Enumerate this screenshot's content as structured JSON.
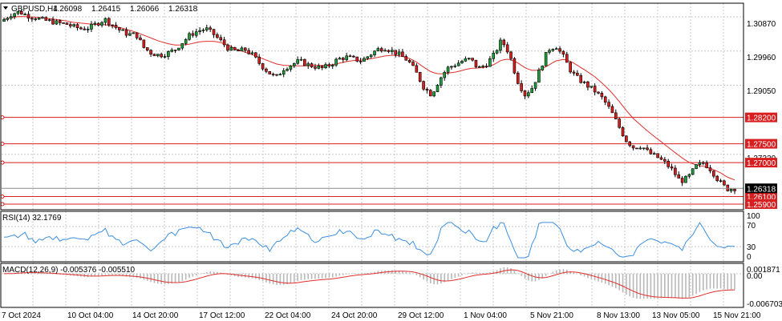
{
  "header": {
    "symbol": "GBPUSD,H4",
    "open": "1.26098",
    "high": "1.26415",
    "low": "1.26066",
    "close": "1.26318"
  },
  "colors": {
    "up": "#1e9e3a",
    "down": "#d81e1e",
    "ma": "#e0302c",
    "level": "#d81e1e",
    "rsi": "#3d8fe0",
    "macd_hist": "#b8b8b8",
    "macd_signal": "#e0302c",
    "grid": "#c8c8c8",
    "current_price_bg": "#000000"
  },
  "price_axis": {
    "ticks": [
      "1.30870",
      "1.29960",
      "1.29050",
      "1.27220"
    ]
  },
  "levels": [
    {
      "label": "1.28200",
      "value": 1.282
    },
    {
      "label": "1.27500",
      "value": 1.275
    },
    {
      "label": "1.27000",
      "value": 1.27
    },
    {
      "label": "1.26100",
      "value": 1.261
    },
    {
      "label": "1.25900",
      "value": 1.259
    }
  ],
  "current_price": "1.26318",
  "rsi_panel": {
    "title": "RSI(14) 32.1769",
    "ticks": [
      "100",
      "70",
      "30",
      "0"
    ]
  },
  "macd_panel": {
    "title": "MACD(12,26,9) -0.005376 -0.005510",
    "ticks": [
      "0.001871",
      "0.00",
      "-0.006703"
    ]
  },
  "time_axis": [
    "7 Oct 2024",
    "10 Oct 04:00",
    "14 Oct 20:00",
    "17 Oct 12:00",
    "22 Oct 04:00",
    "24 Oct 20:00",
    "29 Oct 12:00",
    "1 Nov 04:00",
    "5 Nov 21:00",
    "8 Nov 13:00",
    "13 Nov 05:00",
    "15 Nov 21:00"
  ],
  "chart_data": {
    "type": "candlestick",
    "title": "GBPUSD,H4",
    "ylim": [
      1.2575,
      1.3123
    ],
    "close_path": [
      1.308,
      1.3095,
      1.31,
      1.309,
      1.3085,
      1.3078,
      1.3075,
      1.307,
      1.3068,
      1.306,
      1.3055,
      1.3058,
      1.307,
      1.308,
      1.3065,
      1.305,
      1.304,
      1.304,
      1.3005,
      1.299,
      1.2985,
      1.299,
      1.3,
      1.302,
      1.304,
      1.305,
      1.3055,
      1.304,
      1.302,
      1.3,
      1.2995,
      1.3,
      1.2985,
      1.296,
      1.294,
      1.2925,
      1.295,
      1.296,
      1.297,
      1.296,
      1.2955,
      1.295,
      1.296,
      1.2975,
      1.298,
      1.2975,
      1.297,
      1.2985,
      1.3,
      1.3005,
      1.2995,
      1.2985,
      1.297,
      1.294,
      1.29,
      1.288,
      1.292,
      1.295,
      1.296,
      1.297,
      1.2975,
      1.295,
      1.296,
      1.2985,
      1.3025,
      1.299,
      1.292,
      1.288,
      1.29,
      1.295,
      1.3,
      1.301,
      1.298,
      1.294,
      1.292,
      1.2905,
      1.289,
      1.287,
      1.284,
      1.28,
      1.276,
      1.274,
      1.2745,
      1.2725,
      1.2715,
      1.27,
      1.268,
      1.265,
      1.266,
      1.269,
      1.27,
      1.268,
      1.265,
      1.263,
      1.2632
    ],
    "ma_path": [
      1.308,
      1.3085,
      1.3088,
      1.3087,
      1.3086,
      1.3084,
      1.3082,
      1.3079,
      1.3076,
      1.3072,
      1.307,
      1.3068,
      1.3066,
      1.3066,
      1.3062,
      1.3058,
      1.3052,
      1.3046,
      1.3038,
      1.303,
      1.3022,
      1.3016,
      1.3012,
      1.3012,
      1.3015,
      1.302,
      1.3022,
      1.3022,
      1.3018,
      1.301,
      1.3,
      1.2993,
      1.2986,
      1.2978,
      1.297,
      1.2962,
      1.2958,
      1.2957,
      1.2957,
      1.2957,
      1.2958,
      1.2958,
      1.2959,
      1.2963,
      1.2968,
      1.2971,
      1.2972,
      1.2975,
      1.2979,
      1.2983,
      1.2985,
      1.2983,
      1.2978,
      1.2968,
      1.2953,
      1.294,
      1.2935,
      1.2937,
      1.294,
      1.2945,
      1.295,
      1.2951,
      1.2953,
      1.296,
      1.2972,
      1.2975,
      1.2966,
      1.2952,
      1.2944,
      1.2946,
      1.2958,
      1.297,
      1.2974,
      1.2968,
      1.2955,
      1.2942,
      1.2928,
      1.291,
      1.289,
      1.2866,
      1.284,
      1.2816,
      1.2798,
      1.278,
      1.2764,
      1.2748,
      1.2732,
      1.2716,
      1.2702,
      1.2694,
      1.269,
      1.2684,
      1.2675,
      1.2662,
      1.2654
    ],
    "rsi_ylim": [
      0,
      100
    ],
    "rsi_levels": [
      70,
      30
    ],
    "rsi_last": 32.1769,
    "macd_last": -0.005376,
    "signal_last": -0.00551,
    "macd_ylim": [
      -0.0072,
      0.0022
    ]
  }
}
